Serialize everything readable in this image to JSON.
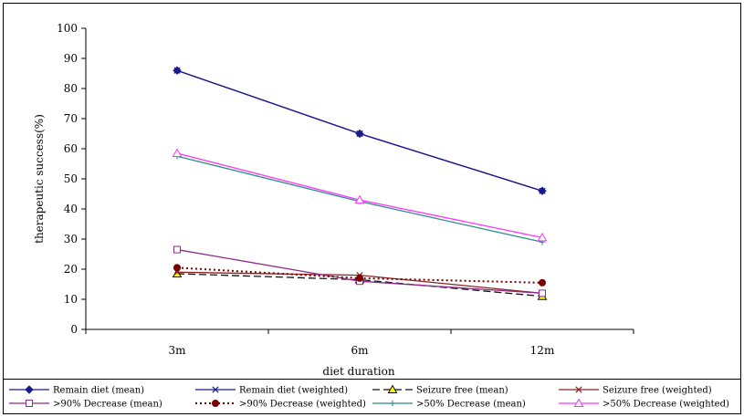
{
  "chart_data": {
    "type": "line",
    "title": "",
    "xlabel": "diet duration",
    "ylabel": "therapeutic success(%)",
    "categories": [
      "3m",
      "6m",
      "12m"
    ],
    "ylim": [
      0,
      100
    ],
    "yticks": [
      0,
      10,
      20,
      30,
      40,
      50,
      60,
      70,
      80,
      90,
      100
    ],
    "grid": false,
    "legend_position": "bottom",
    "series": [
      {
        "name": "Remain diet (mean)",
        "values": [
          86,
          65,
          46
        ],
        "color": "#1a1a8c",
        "marker": "diamond",
        "dash": "solid"
      },
      {
        "name": "Remain diet (weighted)",
        "values": [
          86,
          65,
          46
        ],
        "color": "#1a1a8c",
        "marker": "x",
        "dash": "solid"
      },
      {
        "name": "Seizure free (mean)",
        "values": [
          18.5,
          16.5,
          11
        ],
        "color": "#111111",
        "marker": "triangle-filled",
        "dash": "longdash"
      },
      {
        "name": "Seizure free (weighted)",
        "values": [
          19,
          18,
          12
        ],
        "color": "#8c2323",
        "marker": "x",
        "dash": "solid"
      },
      {
        "name": ">90% Decrease (mean)",
        "values": [
          26.5,
          16,
          12
        ],
        "color": "#8c2b8c",
        "marker": "square",
        "dash": "solid"
      },
      {
        "name": ">90% Decrease (weighted)",
        "values": [
          20.5,
          17,
          15.5
        ],
        "color": "#7a0000",
        "marker": "circle-filled",
        "dash": "dotted"
      },
      {
        "name": ">50% Decrease (mean)",
        "values": [
          57.5,
          42.5,
          29
        ],
        "color": "#2e8b8b",
        "marker": "plus",
        "dash": "solid"
      },
      {
        "name": ">50% Decrease (weighted)",
        "values": [
          58.5,
          43,
          30.5
        ],
        "color": "#ff33ff",
        "marker": "triangle",
        "dash": "solid"
      }
    ]
  }
}
